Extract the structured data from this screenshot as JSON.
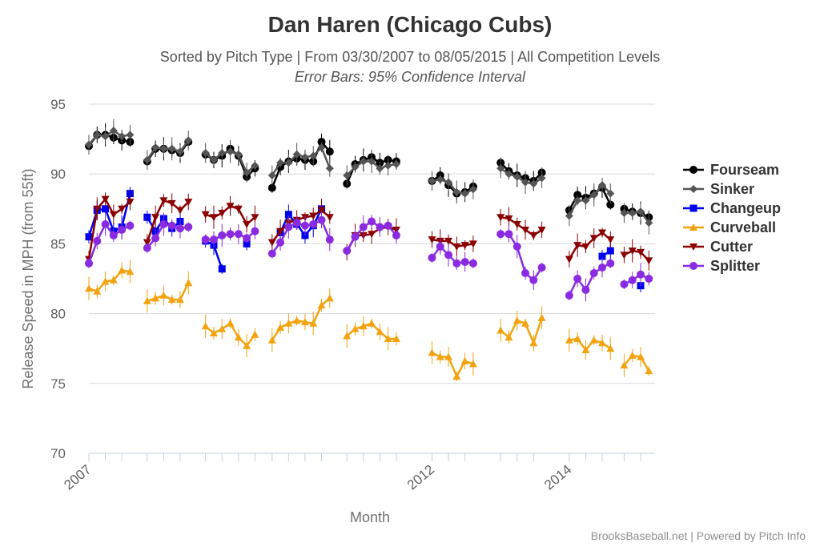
{
  "chart_data": {
    "type": "line",
    "title": "Dan Haren (Chicago Cubs)",
    "subtitle": "Sorted by Pitch Type | From 03/30/2007 to 08/05/2015 | All Competition Levels",
    "subtitle2": "Error Bars: 95% Confidence Interval",
    "xlabel": "Month",
    "ylabel": "Release Speed in MPH (from 55ft)",
    "ylim": [
      70,
      95
    ],
    "yticks": [
      70,
      75,
      80,
      85,
      90,
      95
    ],
    "xticks": [
      {
        "label": "2007",
        "x": 0
      },
      {
        "label": "2012",
        "x": 5.0
      },
      {
        "label": "2014",
        "x": 7.0
      }
    ],
    "xlim": [
      0,
      8.1
    ],
    "credits": "BrooksBaseball.net | Powered by Pitch Info",
    "legend_position": "right",
    "series": [
      {
        "name": "Fourseam",
        "color": "#000000",
        "marker": "circle",
        "segments": [
          {
            "x": [
              0,
              0.12,
              0.24,
              0.36,
              0.48,
              0.6
            ],
            "y": [
              92.0,
              92.8,
              92.8,
              92.6,
              92.4,
              92.3
            ]
          },
          {
            "x": [
              0.85,
              0.97,
              1.09,
              1.21,
              1.33,
              1.45
            ],
            "y": [
              90.9,
              91.8,
              91.8,
              91.7,
              91.5,
              92.3
            ]
          },
          {
            "x": [
              1.7,
              1.82,
              1.94,
              2.06,
              2.18,
              2.3,
              2.42
            ],
            "y": [
              91.4,
              91.0,
              91.3,
              91.8,
              91.3,
              89.8,
              90.4
            ]
          },
          {
            "x": [
              2.67,
              2.79,
              2.91,
              3.03,
              3.15,
              3.27,
              3.39,
              3.51
            ],
            "y": [
              89.0,
              90.5,
              90.9,
              91.1,
              91.0,
              90.9,
              92.3,
              91.6
            ]
          },
          {
            "x": [
              3.76,
              3.88,
              4.0,
              4.12,
              4.24,
              4.36,
              4.48
            ],
            "y": [
              89.3,
              90.7,
              91.0,
              91.2,
              90.8,
              91.0,
              90.9
            ]
          },
          {
            "x": [
              5.0,
              5.12,
              5.24,
              5.36,
              5.48,
              5.6
            ],
            "y": [
              89.5,
              89.9,
              89.2,
              88.6,
              88.7,
              89.1
            ]
          },
          {
            "x": [
              6.0,
              6.12,
              6.24,
              6.36,
              6.48,
              6.6
            ],
            "y": [
              90.8,
              90.2,
              89.9,
              89.7,
              89.5,
              90.1
            ]
          },
          {
            "x": [
              7.0,
              7.12,
              7.24,
              7.36,
              7.48,
              7.6
            ],
            "y": [
              87.4,
              88.5,
              88.3,
              88.6,
              89.0,
              87.8
            ]
          },
          {
            "x": [
              7.8,
              7.92,
              8.04,
              8.16
            ],
            "y": [
              87.5,
              87.3,
              87.2,
              86.9
            ]
          }
        ]
      },
      {
        "name": "Sinker",
        "color": "#555555",
        "marker": "diamond",
        "segments": [
          {
            "x": [
              0,
              0.12,
              0.24,
              0.36,
              0.48,
              0.6
            ],
            "y": [
              92.1,
              92.8,
              92.7,
              93.1,
              92.7,
              92.8
            ]
          },
          {
            "x": [
              0.85,
              0.97,
              1.09,
              1.21,
              1.33,
              1.45
            ],
            "y": [
              91.0,
              91.9,
              91.8,
              91.8,
              91.6,
              92.4
            ]
          },
          {
            "x": [
              1.7,
              1.82,
              1.94,
              2.06,
              2.18,
              2.3,
              2.42
            ],
            "y": [
              91.5,
              91.0,
              91.5,
              91.6,
              91.4,
              90.1,
              90.6
            ]
          },
          {
            "x": [
              2.67,
              2.79,
              2.91,
              3.03,
              3.15,
              3.27,
              3.39,
              3.51
            ],
            "y": [
              89.9,
              90.8,
              90.8,
              91.4,
              91.2,
              91.3,
              91.9,
              90.4
            ]
          },
          {
            "x": [
              3.76,
              3.88,
              4.0,
              4.12,
              4.24,
              4.36,
              4.48
            ],
            "y": [
              89.9,
              90.5,
              90.9,
              90.9,
              90.4,
              90.6,
              90.7
            ]
          },
          {
            "x": [
              5.0,
              5.12,
              5.24,
              5.36,
              5.48,
              5.6
            ],
            "y": [
              89.5,
              89.6,
              89.4,
              88.7,
              88.6,
              88.9
            ]
          },
          {
            "x": [
              6.0,
              6.12,
              6.24,
              6.36,
              6.48,
              6.6
            ],
            "y": [
              90.4,
              90.0,
              89.8,
              89.4,
              89.3,
              89.7
            ]
          },
          {
            "x": [
              7.0,
              7.12,
              7.24,
              7.36,
              7.48,
              7.6
            ],
            "y": [
              87.0,
              88.1,
              88.1,
              88.5,
              89.2,
              88.6
            ]
          },
          {
            "x": [
              7.8,
              7.92,
              8.04,
              8.16
            ],
            "y": [
              87.2,
              87.2,
              87.3,
              86.5
            ]
          }
        ]
      },
      {
        "name": "Changeup",
        "color": "#0000ee",
        "marker": "square",
        "segments": [
          {
            "x": [
              0,
              0.12,
              0.24,
              0.36,
              0.48,
              0.6
            ],
            "y": [
              85.5,
              87.4,
              87.5,
              85.9,
              86.2,
              88.6
            ]
          },
          {
            "x": [
              0.85,
              0.97,
              1.09,
              1.21,
              1.33
            ],
            "y": [
              86.9,
              85.9,
              86.8,
              86.1,
              86.6
            ]
          },
          {
            "x": [
              1.7,
              1.82,
              1.94
            ],
            "y": [
              85.2,
              84.9,
              83.2
            ]
          },
          {
            "x": [
              2.3
            ],
            "y": [
              85.0
            ]
          },
          {
            "x": [
              2.79,
              2.91,
              3.03,
              3.15,
              3.27,
              3.39
            ],
            "y": [
              85.8,
              87.1,
              86.4,
              85.6,
              86.3,
              87.5
            ]
          },
          {
            "x": [
              7.48,
              7.6
            ],
            "y": [
              84.1,
              84.5
            ]
          },
          {
            "x": [
              8.04
            ],
            "y": [
              82.0
            ]
          }
        ]
      },
      {
        "name": "Curveball",
        "color": "#f2a30f",
        "marker": "triangle",
        "segments": [
          {
            "x": [
              0,
              0.12,
              0.24,
              0.36,
              0.48,
              0.6
            ],
            "y": [
              81.8,
              81.6,
              82.3,
              82.4,
              83.1,
              83.0
            ]
          },
          {
            "x": [
              0.85,
              0.97,
              1.09,
              1.21,
              1.33,
              1.45
            ],
            "y": [
              80.9,
              81.1,
              81.3,
              81.0,
              81.0,
              82.2
            ]
          },
          {
            "x": [
              1.7,
              1.82,
              1.94,
              2.06,
              2.18,
              2.3,
              2.42
            ],
            "y": [
              79.1,
              78.6,
              78.9,
              79.3,
              78.3,
              77.7,
              78.5
            ]
          },
          {
            "x": [
              2.67,
              2.79,
              2.91,
              3.03,
              3.15,
              3.27,
              3.39,
              3.51
            ],
            "y": [
              78.1,
              79.0,
              79.3,
              79.5,
              79.4,
              79.3,
              80.6,
              81.1
            ]
          },
          {
            "x": [
              3.76,
              3.88,
              4.0,
              4.12,
              4.24,
              4.36,
              4.48
            ],
            "y": [
              78.4,
              78.9,
              79.1,
              79.3,
              78.7,
              78.2,
              78.2
            ]
          },
          {
            "x": [
              5.0,
              5.12,
              5.24,
              5.36,
              5.48,
              5.6
            ],
            "y": [
              77.2,
              76.9,
              76.9,
              75.5,
              76.6,
              76.4
            ]
          },
          {
            "x": [
              6.0,
              6.12,
              6.24,
              6.36,
              6.48,
              6.6
            ],
            "y": [
              78.8,
              78.3,
              79.5,
              79.3,
              77.9,
              79.7
            ]
          },
          {
            "x": [
              7.0,
              7.12,
              7.24,
              7.36,
              7.48,
              7.6
            ],
            "y": [
              78.1,
              78.2,
              77.4,
              78.1,
              77.9,
              77.5
            ]
          },
          {
            "x": [
              7.8,
              7.92,
              8.04,
              8.16
            ],
            "y": [
              76.3,
              77.0,
              76.9,
              75.9
            ]
          }
        ]
      },
      {
        "name": "Cutter",
        "color": "#8b0000",
        "marker": "triangle-down",
        "segments": [
          {
            "x": [
              0,
              0.12,
              0.24,
              0.36,
              0.48,
              0.6
            ],
            "y": [
              83.9,
              87.5,
              88.2,
              87.1,
              87.5,
              88.0
            ]
          },
          {
            "x": [
              0.85,
              0.97,
              1.09,
              1.21,
              1.33,
              1.45
            ],
            "y": [
              85.1,
              86.9,
              88.1,
              87.9,
              87.4,
              88.0
            ]
          },
          {
            "x": [
              1.7,
              1.82,
              1.94,
              2.06,
              2.18,
              2.3,
              2.42
            ],
            "y": [
              87.1,
              86.9,
              87.2,
              87.7,
              87.5,
              86.4,
              86.9
            ]
          },
          {
            "x": [
              2.67,
              2.79,
              2.91,
              3.03,
              3.15,
              3.27,
              3.39,
              3.51
            ],
            "y": [
              85.1,
              85.9,
              86.5,
              86.7,
              86.9,
              87.0,
              87.4,
              86.9
            ]
          },
          {
            "x": [
              3.76,
              3.88,
              4.0,
              4.12,
              4.24,
              4.36,
              4.48
            ],
            "y": [
              84.4,
              85.6,
              85.6,
              85.7,
              86.1,
              86.2,
              86.0
            ]
          },
          {
            "x": [
              5.0,
              5.12,
              5.24,
              5.36,
              5.48,
              5.6
            ],
            "y": [
              85.3,
              85.2,
              85.2,
              84.8,
              84.9,
              85.0
            ]
          },
          {
            "x": [
              6.0,
              6.12,
              6.24,
              6.36,
              6.48,
              6.6
            ],
            "y": [
              86.9,
              86.8,
              86.4,
              86.0,
              85.6,
              86.0
            ]
          },
          {
            "x": [
              7.0,
              7.12,
              7.24,
              7.36,
              7.48,
              7.6
            ],
            "y": [
              83.9,
              84.9,
              84.8,
              85.4,
              85.8,
              85.3
            ]
          },
          {
            "x": [
              7.8,
              7.92,
              8.04,
              8.16
            ],
            "y": [
              84.2,
              84.5,
              84.4,
              83.8
            ]
          }
        ]
      },
      {
        "name": "Splitter",
        "color": "#8a2be2",
        "marker": "circle",
        "segments": [
          {
            "x": [
              0,
              0.12,
              0.24,
              0.36,
              0.48,
              0.6
            ],
            "y": [
              83.6,
              85.2,
              86.4,
              85.6,
              86.0,
              86.3
            ]
          },
          {
            "x": [
              0.85,
              0.97,
              1.09,
              1.21,
              1.33,
              1.45
            ],
            "y": [
              84.7,
              85.4,
              86.4,
              86.3,
              86.1,
              86.2
            ]
          },
          {
            "x": [
              1.7,
              1.82,
              1.94,
              2.06,
              2.18,
              2.3,
              2.42
            ],
            "y": [
              85.3,
              85.3,
              85.6,
              85.7,
              85.7,
              85.4,
              85.9
            ]
          },
          {
            "x": [
              2.67,
              2.79,
              2.91,
              3.03,
              3.15,
              3.27,
              3.39,
              3.51
            ],
            "y": [
              84.3,
              85.1,
              86.2,
              86.5,
              86.3,
              86.4,
              86.7,
              85.3
            ]
          },
          {
            "x": [
              3.76,
              3.88,
              4.0,
              4.12,
              4.24,
              4.36,
              4.48
            ],
            "y": [
              84.5,
              85.5,
              86.2,
              86.6,
              86.2,
              86.3,
              85.6
            ]
          },
          {
            "x": [
              5.0,
              5.12,
              5.24,
              5.36,
              5.48,
              5.6
            ],
            "y": [
              84.0,
              84.8,
              84.2,
              83.6,
              83.7,
              83.6
            ]
          },
          {
            "x": [
              6.0,
              6.12,
              6.24,
              6.36,
              6.48,
              6.6
            ],
            "y": [
              85.7,
              85.7,
              84.8,
              82.9,
              82.4,
              83.3
            ]
          },
          {
            "x": [
              7.0,
              7.12,
              7.24,
              7.36,
              7.48,
              7.6
            ],
            "y": [
              81.3,
              82.5,
              81.7,
              82.9,
              83.3,
              83.6
            ]
          },
          {
            "x": [
              7.8,
              7.92,
              8.04,
              8.16
            ],
            "y": [
              82.1,
              82.4,
              82.8,
              82.5
            ]
          }
        ]
      }
    ]
  }
}
